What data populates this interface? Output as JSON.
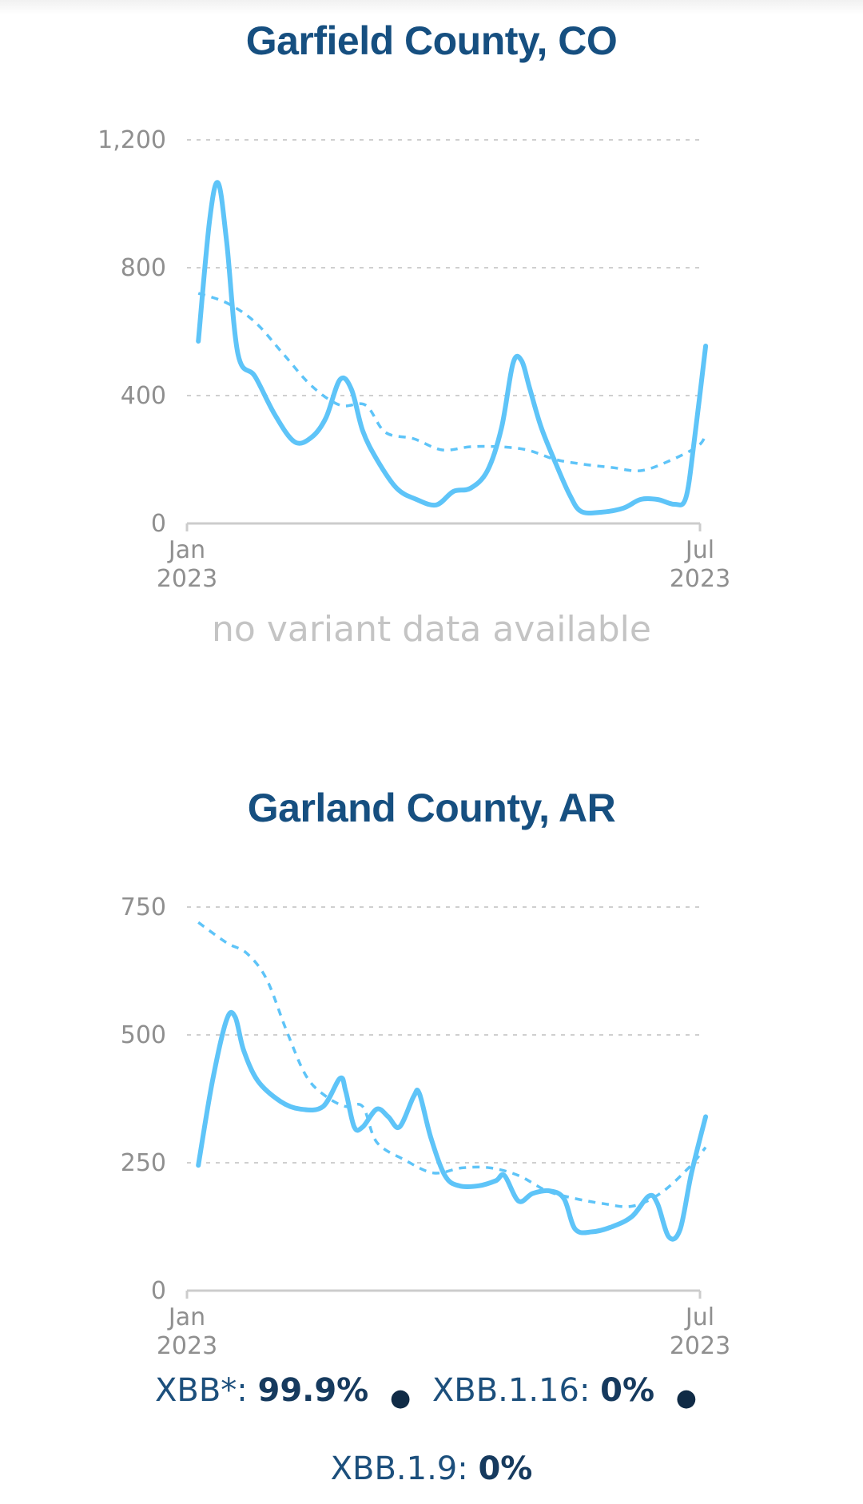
{
  "colors": {
    "title": "#164f80",
    "line": "#5ec4f8",
    "grid": "#cfcfcf",
    "axis": "#cccccc",
    "tick_text": "#8f8f8f",
    "variant_text": "#1c4f7c"
  },
  "panel1": {
    "title": "Garfield County, CO",
    "no_data": "no variant data available"
  },
  "panel2": {
    "title": "Garland County, AR",
    "variants": [
      {
        "name": "XBB*:",
        "value": "99.9%"
      },
      {
        "name": "XBB.1.16:",
        "value": "0%"
      },
      {
        "name": "XBB.1.9:",
        "value": "0%"
      }
    ]
  },
  "chart_data": [
    {
      "type": "line",
      "title": "Garfield County, CO",
      "ylim": [
        0,
        1200
      ],
      "yticks": [
        "0",
        "400",
        "800",
        "1,200"
      ],
      "xticks": [
        {
          "label": [
            "Jan",
            "2023"
          ],
          "date": "2023-01-01"
        },
        {
          "label": [
            "Jul",
            "2023"
          ],
          "date": "2023-07-01"
        }
      ],
      "grid": true,
      "series": [
        {
          "style": "solid",
          "points": [
            [
              "2023-01-05",
              570
            ],
            [
              "2023-01-09",
              950
            ],
            [
              "2023-01-12",
              1065
            ],
            [
              "2023-01-15",
              880
            ],
            [
              "2023-01-19",
              530
            ],
            [
              "2023-01-25",
              460
            ],
            [
              "2023-02-01",
              340
            ],
            [
              "2023-02-08",
              255
            ],
            [
              "2023-02-14",
              270
            ],
            [
              "2023-02-19",
              330
            ],
            [
              "2023-02-24",
              450
            ],
            [
              "2023-02-28",
              420
            ],
            [
              "2023-03-04",
              290
            ],
            [
              "2023-03-09",
              200
            ],
            [
              "2023-03-16",
              110
            ],
            [
              "2023-03-23",
              75
            ],
            [
              "2023-03-30",
              58
            ],
            [
              "2023-04-05",
              100
            ],
            [
              "2023-04-11",
              110
            ],
            [
              "2023-04-17",
              165
            ],
            [
              "2023-04-22",
              300
            ],
            [
              "2023-04-26",
              500
            ],
            [
              "2023-04-29",
              510
            ],
            [
              "2023-05-02",
              420
            ],
            [
              "2023-05-06",
              300
            ],
            [
              "2023-05-11",
              190
            ],
            [
              "2023-05-16",
              90
            ],
            [
              "2023-05-20",
              38
            ],
            [
              "2023-05-27",
              35
            ],
            [
              "2023-06-04",
              48
            ],
            [
              "2023-06-10",
              75
            ],
            [
              "2023-06-16",
              75
            ],
            [
              "2023-06-22",
              60
            ],
            [
              "2023-06-26",
              80
            ],
            [
              "2023-06-29",
              260
            ],
            [
              "2023-07-03",
              555
            ]
          ]
        },
        {
          "style": "dashed",
          "points": [
            [
              "2023-01-05",
              720
            ],
            [
              "2023-01-15",
              690
            ],
            [
              "2023-01-25",
              630
            ],
            [
              "2023-02-04",
              530
            ],
            [
              "2023-02-14",
              430
            ],
            [
              "2023-02-24",
              370
            ],
            [
              "2023-03-05",
              370
            ],
            [
              "2023-03-12",
              285
            ],
            [
              "2023-03-22",
              265
            ],
            [
              "2023-04-01",
              230
            ],
            [
              "2023-04-11",
              240
            ],
            [
              "2023-04-21",
              240
            ],
            [
              "2023-05-01",
              230
            ],
            [
              "2023-05-11",
              200
            ],
            [
              "2023-05-21",
              185
            ],
            [
              "2023-05-31",
              175
            ],
            [
              "2023-06-10",
              165
            ],
            [
              "2023-06-20",
              195
            ],
            [
              "2023-06-30",
              240
            ],
            [
              "2023-07-03",
              275
            ]
          ]
        }
      ]
    },
    {
      "type": "line",
      "title": "Garland County, AR",
      "ylim": [
        0,
        750
      ],
      "yticks": [
        "0",
        "250",
        "500",
        "750"
      ],
      "xticks": [
        {
          "label": [
            "Jan",
            "2023"
          ],
          "date": "2023-01-01"
        },
        {
          "label": [
            "Jul",
            "2023"
          ],
          "date": "2023-07-01"
        }
      ],
      "grid": true,
      "series": [
        {
          "style": "solid",
          "points": [
            [
              "2023-01-05",
              245
            ],
            [
              "2023-01-10",
              410
            ],
            [
              "2023-01-15",
              530
            ],
            [
              "2023-01-18",
              535
            ],
            [
              "2023-01-21",
              470
            ],
            [
              "2023-01-26",
              410
            ],
            [
              "2023-02-03",
              370
            ],
            [
              "2023-02-10",
              355
            ],
            [
              "2023-02-18",
              360
            ],
            [
              "2023-02-24",
              415
            ],
            [
              "2023-02-26",
              390
            ],
            [
              "2023-03-01",
              320
            ],
            [
              "2023-03-04",
              320
            ],
            [
              "2023-03-09",
              355
            ],
            [
              "2023-03-13",
              340
            ],
            [
              "2023-03-17",
              320
            ],
            [
              "2023-03-22",
              380
            ],
            [
              "2023-03-24",
              385
            ],
            [
              "2023-03-28",
              300
            ],
            [
              "2023-04-02",
              225
            ],
            [
              "2023-04-07",
              205
            ],
            [
              "2023-04-14",
              205
            ],
            [
              "2023-04-20",
              215
            ],
            [
              "2023-04-23",
              225
            ],
            [
              "2023-04-28",
              175
            ],
            [
              "2023-05-03",
              190
            ],
            [
              "2023-05-09",
              195
            ],
            [
              "2023-05-14",
              180
            ],
            [
              "2023-05-18",
              120
            ],
            [
              "2023-05-24",
              115
            ],
            [
              "2023-05-31",
              125
            ],
            [
              "2023-06-07",
              145
            ],
            [
              "2023-06-13",
              185
            ],
            [
              "2023-06-16",
              170
            ],
            [
              "2023-06-20",
              105
            ],
            [
              "2023-06-24",
              120
            ],
            [
              "2023-06-28",
              230
            ],
            [
              "2023-07-03",
              340
            ]
          ]
        },
        {
          "style": "dashed",
          "points": [
            [
              "2023-01-05",
              720
            ],
            [
              "2023-01-15",
              680
            ],
            [
              "2023-01-22",
              660
            ],
            [
              "2023-01-29",
              610
            ],
            [
              "2023-02-05",
              510
            ],
            [
              "2023-02-12",
              420
            ],
            [
              "2023-02-19",
              380
            ],
            [
              "2023-02-26",
              360
            ],
            [
              "2023-03-04",
              360
            ],
            [
              "2023-03-09",
              290
            ],
            [
              "2023-03-19",
              255
            ],
            [
              "2023-03-29",
              230
            ],
            [
              "2023-04-08",
              240
            ],
            [
              "2023-04-18",
              240
            ],
            [
              "2023-04-28",
              225
            ],
            [
              "2023-05-08",
              195
            ],
            [
              "2023-05-18",
              180
            ],
            [
              "2023-05-28",
              170
            ],
            [
              "2023-06-07",
              165
            ],
            [
              "2023-06-17",
              190
            ],
            [
              "2023-06-27",
              240
            ],
            [
              "2023-07-03",
              280
            ]
          ]
        }
      ]
    }
  ]
}
